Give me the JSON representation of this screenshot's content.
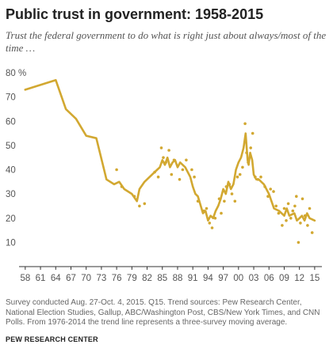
{
  "title": "Public trust in government: 1958-2015",
  "subtitle": "Trust the federal government to do what is right just about always/most of the time …",
  "note": "Survey conducted Aug. 27-Oct. 4, 2015. Q15. Trend sources: Pew Research Center, National Election Studies, Gallup, ABC/Washington Post, CBS/New York Times, and CNN Polls. From 1976-2014 the trend line represents a three-survey moving average.",
  "source": "PEW RESEARCH CENTER",
  "colors": {
    "series": "#d2a831",
    "axis": "#333333",
    "text": "#555555"
  },
  "chart_data": {
    "type": "line",
    "title": "Public trust in government: 1958-2015",
    "xlabel": "",
    "ylabel": "",
    "xlim": [
      1957.4,
      2015.8
    ],
    "ylim": [
      0,
      80
    ],
    "grid": false,
    "y_ticks": [
      0,
      10,
      20,
      30,
      40,
      50,
      60,
      70,
      80
    ],
    "y_tick_labels": [
      "",
      "10",
      "20",
      "30",
      "40",
      "50",
      "60",
      "70",
      "80 %"
    ],
    "x_ticks": [
      1958,
      1961,
      1964,
      1967,
      1970,
      1973,
      1976,
      1979,
      1982,
      1985,
      1988,
      1991,
      1994,
      1997,
      2000,
      2003,
      2006,
      2009,
      2012,
      2015
    ],
    "x_tick_labels": [
      "58",
      "61",
      "64",
      "67",
      "70",
      "73",
      "76",
      "79",
      "82",
      "85",
      "88",
      "91",
      "94",
      "97",
      "00",
      "03",
      "06",
      "09",
      "12",
      "15"
    ],
    "trend_line": {
      "x": [
        1958,
        1964,
        1966,
        1968,
        1970,
        1972,
        1974,
        1975.5,
        1976.5,
        1977.5,
        1979,
        1980,
        1980.5,
        1981.5,
        1983,
        1984,
        1984.5,
        1985,
        1985.5,
        1986,
        1986.5,
        1987,
        1987.5,
        1988,
        1988.5,
        1989.5,
        1990.5,
        1991,
        1991.5,
        1992,
        1993,
        1993.5,
        1994,
        1994.5,
        1995,
        1995.5,
        1996,
        1996.5,
        1997,
        1997.5,
        1998,
        1998.5,
        1999,
        1999.5,
        2000,
        2000.5,
        2001,
        2001.4,
        2001.8,
        2002,
        2002.3,
        2002.7,
        2003,
        2003.5,
        2004,
        2005,
        2006,
        2007,
        2008,
        2009,
        2009.5,
        2010,
        2011,
        2011.5,
        2012,
        2012.5,
        2013,
        2013.5,
        2014,
        2015
      ],
      "y": [
        73,
        77,
        65,
        61,
        54,
        53,
        36,
        34,
        35,
        32,
        30,
        27,
        32,
        35,
        38,
        40,
        41,
        44,
        42,
        45,
        41,
        43,
        44,
        41,
        43,
        41,
        37,
        33,
        30,
        29,
        22,
        23,
        19,
        21,
        20,
        23,
        25,
        28,
        32,
        30,
        35,
        32,
        34,
        40,
        43,
        45,
        49,
        55,
        44,
        42,
        47,
        44,
        38,
        36,
        36,
        34,
        30,
        24,
        23,
        21,
        24,
        21,
        22,
        19,
        20,
        21,
        19,
        22,
        20,
        19
      ]
    },
    "survey_points": {
      "x": [
        1976,
        1977,
        1979.5,
        1980.5,
        1981.5,
        1983.5,
        1984.2,
        1984.8,
        1985.2,
        1985.7,
        1986.3,
        1986.8,
        1987.3,
        1988.4,
        1989,
        1989.7,
        1990.8,
        1991.3,
        1992,
        1993.2,
        1993.7,
        1994.3,
        1994.8,
        1995.4,
        1996.2,
        1996.6,
        1997.2,
        1997.6,
        1998.2,
        1998.7,
        1999.3,
        1999.8,
        2000.3,
        2000.8,
        2001.3,
        2001.6,
        2001.9,
        2002.4,
        2002.8,
        2003.3,
        2003.8,
        2004.4,
        2005.2,
        2005.8,
        2006.3,
        2006.9,
        2007.4,
        2007.9,
        2008.6,
        2009,
        2009.4,
        2009.8,
        2010.3,
        2010.7,
        2011.1,
        2011.4,
        2011.8,
        2012.2,
        2012.6,
        2013.1,
        2013.6,
        2014,
        2014.5
      ],
      "y": [
        40,
        33,
        29,
        25,
        26,
        39,
        37,
        49,
        45,
        43,
        48,
        38,
        44,
        36,
        40,
        44,
        40,
        37,
        27,
        23,
        24,
        18,
        16,
        20,
        28,
        22,
        27,
        33,
        34,
        30,
        27,
        37,
        38,
        41,
        59,
        47,
        43,
        49,
        55,
        37,
        36,
        37,
        33,
        29,
        32,
        31,
        25,
        22,
        17,
        24,
        19,
        26,
        20,
        23,
        25,
        29,
        10,
        18,
        28,
        21,
        17,
        24,
        14
      ]
    }
  }
}
